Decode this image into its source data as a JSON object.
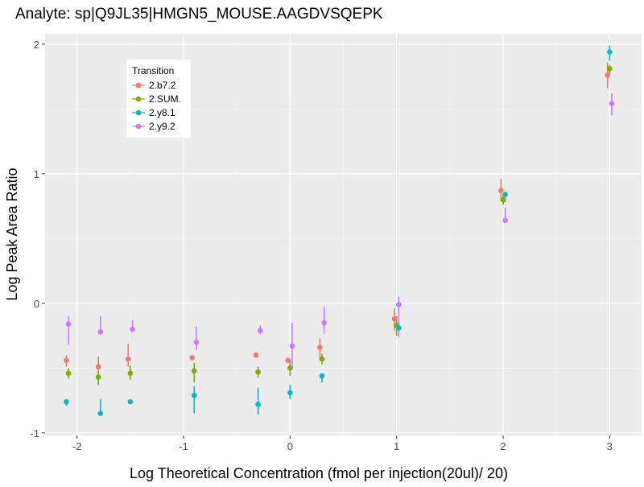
{
  "chart_data": {
    "type": "scatter",
    "title": "Analyte: sp|Q9JL35|HMGN5_MOUSE.AAGDVSQEPK",
    "xlabel": "Log Theoretical Concentration (fmol per injection(20ul)/ 20)",
    "ylabel": "Log Peak Area Ratio",
    "xlim": [
      -2.3,
      3.3
    ],
    "ylim": [
      -1.02,
      2.08
    ],
    "x_ticks": [
      -2,
      -1,
      0,
      1,
      2,
      3
    ],
    "x_tick_labels": [
      "-2",
      "-1",
      "0",
      "1",
      "2",
      "3"
    ],
    "y_ticks": [
      -1,
      0,
      1,
      2
    ],
    "y_tick_labels": [
      "-1",
      "0",
      "1",
      "2"
    ],
    "grid": true,
    "error_bars": true,
    "legend": {
      "title": "Transition",
      "position": "top-left-inside"
    },
    "series": [
      {
        "name": "2.b7.2",
        "color": "#F8766D",
        "points": [
          {
            "x": -2.1,
            "y": -0.44,
            "low": -0.49,
            "high": -0.4
          },
          {
            "x": -1.8,
            "y": -0.49,
            "low": -0.55,
            "high": -0.41
          },
          {
            "x": -1.52,
            "y": -0.43,
            "low": -0.49,
            "high": -0.31
          },
          {
            "x": -0.92,
            "y": -0.42,
            "low": -0.42,
            "high": -0.42
          },
          {
            "x": -0.32,
            "y": -0.4,
            "low": -0.4,
            "high": -0.4
          },
          {
            "x": -0.02,
            "y": -0.44,
            "low": -0.44,
            "high": -0.44
          },
          {
            "x": 0.28,
            "y": -0.34,
            "low": -0.44,
            "high": -0.27
          },
          {
            "x": 0.98,
            "y": -0.12,
            "low": -0.21,
            "high": -0.04
          },
          {
            "x": 1.98,
            "y": 0.87,
            "low": 0.79,
            "high": 0.96
          },
          {
            "x": 2.98,
            "y": 1.76,
            "low": 1.66,
            "high": 1.86
          }
        ]
      },
      {
        "name": "2.SUM.",
        "color": "#7CAE00",
        "points": [
          {
            "x": -2.08,
            "y": -0.54,
            "low": -0.58,
            "high": -0.5
          },
          {
            "x": -1.8,
            "y": -0.57,
            "low": -0.63,
            "high": -0.52
          },
          {
            "x": -1.5,
            "y": -0.54,
            "low": -0.59,
            "high": -0.48
          },
          {
            "x": -0.9,
            "y": -0.52,
            "low": -0.61,
            "high": -0.46
          },
          {
            "x": -0.3,
            "y": -0.53,
            "low": -0.57,
            "high": -0.49
          },
          {
            "x": 0.0,
            "y": -0.5,
            "low": -0.56,
            "high": -0.44
          },
          {
            "x": 0.3,
            "y": -0.43,
            "low": -0.47,
            "high": -0.39
          },
          {
            "x": 1.0,
            "y": -0.17,
            "low": -0.25,
            "high": -0.1
          },
          {
            "x": 2.0,
            "y": 0.8,
            "low": 0.76,
            "high": 0.84
          },
          {
            "x": 3.0,
            "y": 1.81,
            "low": 1.77,
            "high": 1.84
          }
        ]
      },
      {
        "name": "2.y8.1",
        "color": "#00BFC4",
        "points": [
          {
            "x": -2.1,
            "y": -0.76,
            "low": -0.79,
            "high": -0.74
          },
          {
            "x": -1.78,
            "y": -0.85,
            "low": -0.85,
            "high": -0.74
          },
          {
            "x": -1.5,
            "y": -0.76,
            "low": -0.76,
            "high": -0.76
          },
          {
            "x": -0.9,
            "y": -0.71,
            "low": -0.85,
            "high": -0.64
          },
          {
            "x": -0.3,
            "y": -0.78,
            "low": -0.86,
            "high": -0.65
          },
          {
            "x": 0.0,
            "y": -0.69,
            "low": -0.74,
            "high": -0.63
          },
          {
            "x": 0.3,
            "y": -0.56,
            "low": -0.61,
            "high": -0.56
          },
          {
            "x": 1.02,
            "y": -0.19,
            "low": -0.22,
            "high": -0.14
          },
          {
            "x": 2.02,
            "y": 0.84,
            "low": 0.78,
            "high": 0.84
          },
          {
            "x": 3.0,
            "y": 1.94,
            "low": 1.87,
            "high": 1.99
          }
        ]
      },
      {
        "name": "2.y9.2",
        "color": "#C77CFF",
        "points": [
          {
            "x": -2.08,
            "y": -0.16,
            "low": -0.32,
            "high": -0.1
          },
          {
            "x": -1.78,
            "y": -0.22,
            "low": -0.22,
            "high": -0.1
          },
          {
            "x": -1.48,
            "y": -0.2,
            "low": -0.22,
            "high": -0.13
          },
          {
            "x": -0.88,
            "y": -0.3,
            "low": -0.36,
            "high": -0.18
          },
          {
            "x": -0.28,
            "y": -0.21,
            "low": -0.24,
            "high": -0.17
          },
          {
            "x": 0.02,
            "y": -0.33,
            "low": -0.5,
            "high": -0.15
          },
          {
            "x": 0.32,
            "y": -0.15,
            "low": -0.23,
            "high": -0.03
          },
          {
            "x": 1.02,
            "y": -0.01,
            "low": -0.26,
            "high": 0.05
          },
          {
            "x": 2.02,
            "y": 0.64,
            "low": 0.64,
            "high": 0.74
          },
          {
            "x": 3.02,
            "y": 1.54,
            "low": 1.45,
            "high": 1.62
          }
        ]
      }
    ]
  }
}
